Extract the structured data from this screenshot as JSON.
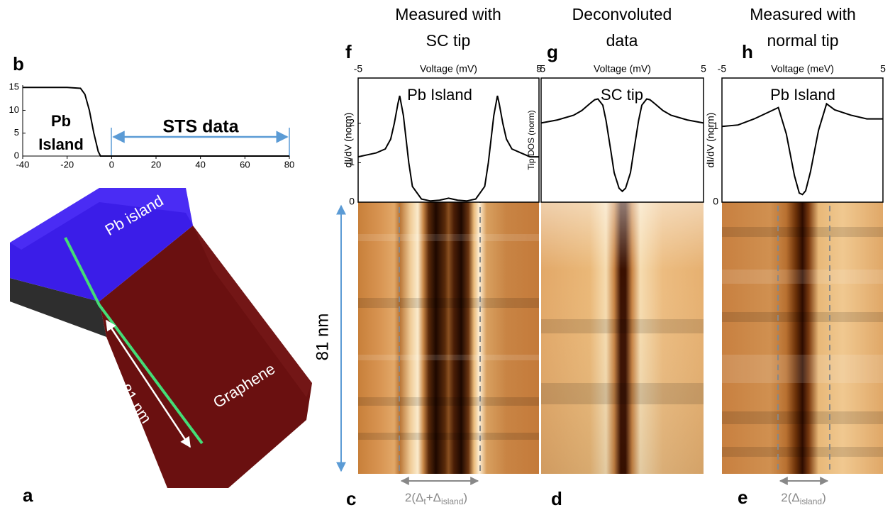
{
  "chart_data": [
    {
      "type": "line",
      "panel": "b",
      "x": [
        -40,
        -20,
        -14,
        -12,
        -10,
        -8,
        -6,
        -5,
        0,
        20,
        40,
        60,
        80
      ],
      "values": [
        15,
        15,
        14.8,
        13.5,
        10,
        5,
        1,
        0,
        0,
        0,
        0,
        0,
        0
      ],
      "color": "#000000",
      "xlim": [
        -40,
        80
      ],
      "ylim": [
        0,
        15.5
      ],
      "xticks": [
        -40,
        -20,
        0,
        20,
        40,
        60,
        80
      ],
      "yticks": [
        0,
        5,
        10,
        15
      ],
      "annotations": [
        "Pb",
        "Island",
        "STS data"
      ]
    },
    {
      "type": "line",
      "panel": "f",
      "title": [
        "Measured with",
        "SC tip"
      ],
      "xlabel": "Voltage (mV)",
      "ylabel": "dI/dV (norm)",
      "annotation": "Pb Island",
      "x": [
        -5,
        -4.5,
        -4,
        -3.5,
        -3.2,
        -3,
        -2.8,
        -2.7,
        -2.5,
        -2.2,
        -2,
        -1.5,
        -1,
        -0.5,
        0,
        0.5,
        1,
        1.5,
        2,
        2.2,
        2.5,
        2.7,
        2.8,
        3,
        3.2,
        3.5,
        4,
        4.5,
        5
      ],
      "values": [
        1.15,
        1.2,
        1.25,
        1.35,
        1.6,
        2.0,
        2.5,
        2.7,
        2.2,
        1.0,
        0.4,
        0.08,
        0.03,
        0.05,
        0.1,
        0.05,
        0.03,
        0.08,
        0.4,
        1.0,
        2.2,
        2.7,
        2.5,
        2.0,
        1.6,
        1.35,
        1.25,
        1.15,
        1.15
      ],
      "color": "#000000",
      "xlim": [
        -5,
        5
      ],
      "ylim": [
        0,
        3.15
      ],
      "xticks": [
        -5,
        5
      ],
      "yticks": [
        0,
        1,
        2
      ]
    },
    {
      "type": "line",
      "panel": "g",
      "title": [
        "Deconvoluted",
        "data"
      ],
      "xlabel": "Voltage (mV)",
      "ylabel": "Tip DOS (norm)",
      "annotation": "SC tip",
      "x": [
        -5,
        -4,
        -3,
        -2.5,
        -2,
        -1.7,
        -1.5,
        -1.2,
        -1,
        -0.7,
        -0.5,
        -0.2,
        0,
        0.2,
        0.5,
        0.7,
        1,
        1.2,
        1.5,
        1.7,
        2,
        2.5,
        3,
        4,
        5
      ],
      "values": [
        1.02,
        1.06,
        1.12,
        1.18,
        1.27,
        1.32,
        1.33,
        1.25,
        1.05,
        0.65,
        0.38,
        0.18,
        0.14,
        0.18,
        0.38,
        0.65,
        1.05,
        1.25,
        1.33,
        1.32,
        1.27,
        1.18,
        1.12,
        1.06,
        1.02
      ],
      "color": "#000000",
      "xlim": [
        -5,
        5
      ],
      "ylim": [
        0,
        1.6
      ],
      "xticks": [
        -5,
        5
      ]
    },
    {
      "type": "line",
      "panel": "h",
      "title": [
        "Measured with",
        "normal tip"
      ],
      "xlabel": "Voltage (meV)",
      "ylabel": "dI/dV (norm)",
      "annotation": "Pb Island",
      "x": [
        -5,
        -4,
        -3,
        -2,
        -1.5,
        -1,
        -0.5,
        -0.2,
        0,
        0.2,
        0.5,
        1,
        1.5,
        2,
        3,
        4,
        5
      ],
      "values": [
        1.0,
        1.02,
        1.1,
        1.2,
        1.25,
        0.9,
        0.35,
        0.12,
        0.1,
        0.15,
        0.4,
        0.95,
        1.3,
        1.22,
        1.15,
        1.1,
        1.1
      ],
      "color": "#000000",
      "xlim": [
        -5,
        5
      ],
      "ylim": [
        0,
        1.64
      ],
      "xticks": [
        -5,
        5
      ],
      "yticks": [
        0,
        1
      ]
    }
  ],
  "panel_a": {
    "label": "a",
    "island": "Pb island",
    "substrate": "Graphene",
    "length": "81 nm"
  },
  "maps": [
    {
      "label": "c",
      "annotation": [
        "2(Δ",
        "t",
        "+Δ",
        "island",
        ")"
      ]
    },
    {
      "label": "d"
    },
    {
      "label": "e",
      "annotation": [
        "2(Δ",
        "island",
        ")"
      ]
    }
  ],
  "scale_label": "81 nm"
}
